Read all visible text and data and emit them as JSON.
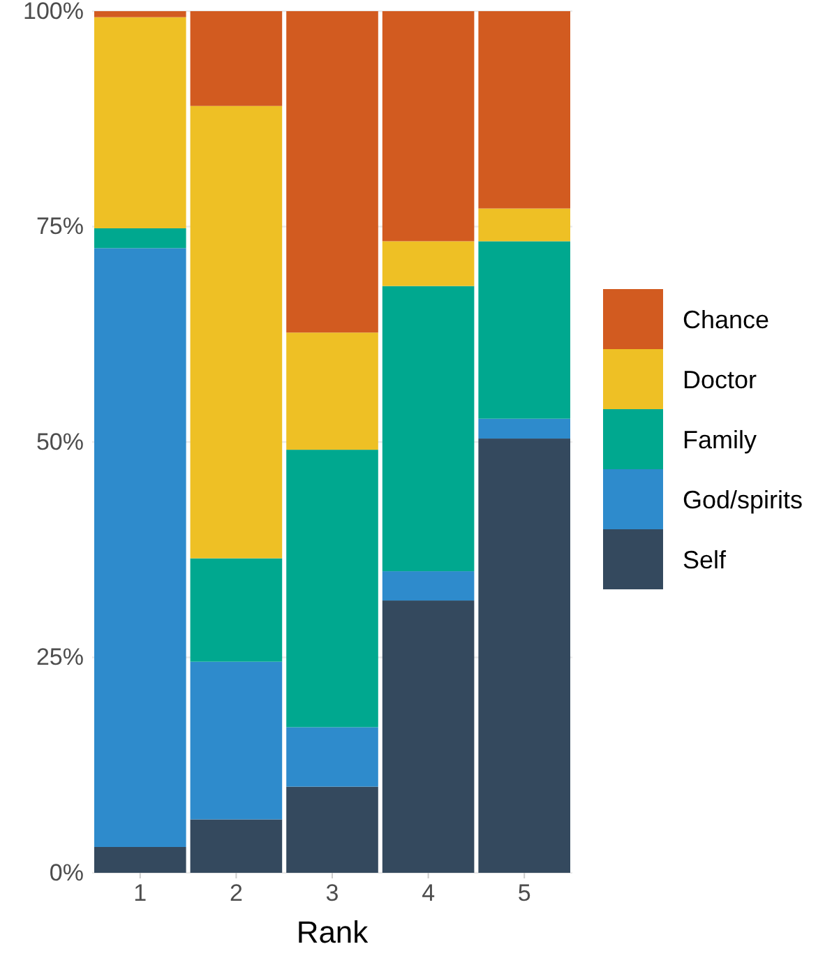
{
  "chart_data": {
    "type": "bar",
    "stacked": true,
    "xlabel": "Rank",
    "categories": [
      "1",
      "2",
      "3",
      "4",
      "5"
    ],
    "series": [
      {
        "name": "Self",
        "color": "#34495e",
        "values": [
          3,
          6.2,
          10,
          31.6,
          50.4
        ]
      },
      {
        "name": "God/spirits",
        "color": "#2e8bcc",
        "values": [
          69.5,
          18.3,
          6.9,
          3.4,
          2.3
        ]
      },
      {
        "name": "Family",
        "color": "#00a88f",
        "values": [
          2.3,
          12,
          32.2,
          33.1,
          20.6
        ]
      },
      {
        "name": "Doctor",
        "color": "#eec025",
        "values": [
          24.5,
          52.5,
          13.6,
          5.2,
          3.8
        ]
      },
      {
        "name": "Chance",
        "color": "#d25b20",
        "values": [
          0.7,
          11,
          37.3,
          26.7,
          22.9
        ]
      }
    ],
    "ylim": [
      0,
      100
    ],
    "yticks": [
      {
        "value": 0,
        "label": "0%"
      },
      {
        "value": 25,
        "label": "25%"
      },
      {
        "value": 50,
        "label": "50%"
      },
      {
        "value": 75,
        "label": "75%"
      },
      {
        "value": 100,
        "label": "100%"
      }
    ],
    "grid": "y",
    "legend": "right"
  }
}
